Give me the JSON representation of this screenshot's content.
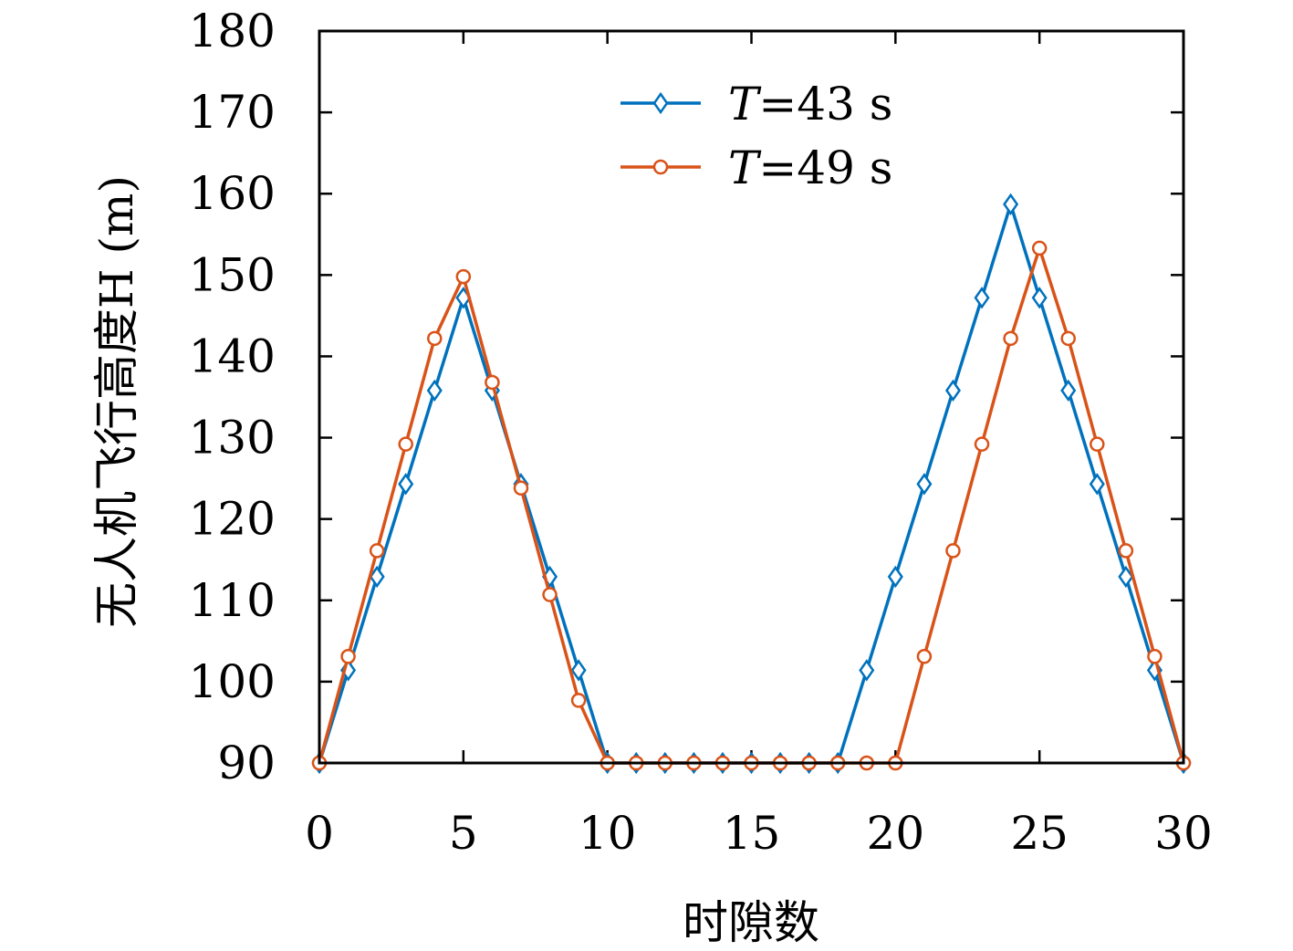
{
  "chart_data": {
    "type": "line",
    "title": "",
    "xlabel": "时隙数",
    "ylabel": "无人机飞行高度H (m)",
    "xlim": [
      0,
      30
    ],
    "ylim": [
      90,
      180
    ],
    "xticks": [
      0,
      5,
      10,
      15,
      20,
      25,
      30
    ],
    "yticks": [
      90,
      100,
      110,
      120,
      130,
      140,
      150,
      160,
      170,
      180
    ],
    "grid": false,
    "legend_position": "top-center",
    "series": [
      {
        "name": "T=43 s",
        "color": "#0072BD",
        "marker": "diamond",
        "x": [
          0,
          1,
          2,
          3,
          4,
          5,
          6,
          7,
          8,
          9,
          10,
          11,
          12,
          13,
          14,
          15,
          16,
          17,
          18,
          19,
          20,
          21,
          22,
          23,
          24,
          25,
          26,
          27,
          28,
          29,
          30
        ],
        "y": [
          90,
          101.4,
          112.9,
          124.3,
          135.8,
          147.2,
          135.8,
          124.3,
          112.9,
          101.4,
          90,
          90,
          90,
          90,
          90,
          90,
          90,
          90,
          90,
          101.4,
          112.9,
          124.3,
          135.8,
          147.2,
          158.7,
          147.2,
          135.8,
          124.3,
          112.9,
          101.4,
          90
        ]
      },
      {
        "name": "T=49 s",
        "color": "#D95319",
        "marker": "circle",
        "x": [
          0,
          1,
          2,
          3,
          4,
          5,
          6,
          7,
          8,
          9,
          10,
          11,
          12,
          13,
          14,
          15,
          16,
          17,
          18,
          19,
          20,
          21,
          22,
          23,
          24,
          25,
          26,
          27,
          28,
          29,
          30
        ],
        "y": [
          90,
          103.1,
          116.1,
          129.2,
          142.2,
          149.8,
          136.8,
          123.8,
          110.7,
          97.7,
          90,
          90,
          90,
          90,
          90,
          90,
          90,
          90,
          90,
          90,
          90,
          103.1,
          116.1,
          129.2,
          142.2,
          153.3,
          142.2,
          129.2,
          116.1,
          103.1,
          90
        ]
      }
    ]
  }
}
